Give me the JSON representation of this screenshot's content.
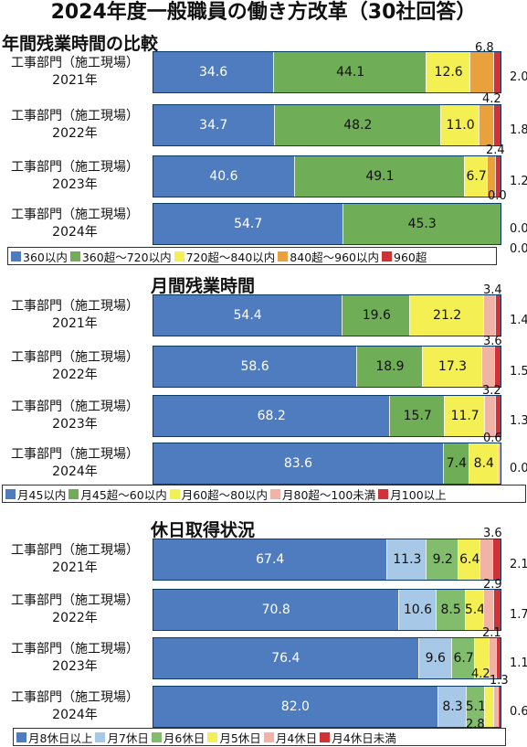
{
  "title": "2024年度一般職員の働き方改革（30社回答）",
  "chart_data": [
    {
      "type": "bar",
      "stacked": true,
      "orientation": "horizontal",
      "title": "年間残業時間の比較",
      "categories": [
        [
          "工事部門（施工現場）",
          "2021年"
        ],
        [
          "工事部門（施工現場）",
          "2022年"
        ],
        [
          "工事部門（施工現場）",
          "2023年"
        ],
        [
          "工事部門（施工現場）",
          "2024年"
        ]
      ],
      "series": [
        {
          "name": "360以内",
          "color": "#4f7cbe",
          "values": [
            34.6,
            34.7,
            40.6,
            54.7
          ]
        },
        {
          "name": "360超～720以内",
          "color": "#6fae56",
          "values": [
            44.1,
            48.2,
            49.1,
            45.3
          ]
        },
        {
          "name": "720超～840以内",
          "color": "#f4ef52",
          "values": [
            12.6,
            11.0,
            6.7,
            0.0
          ]
        },
        {
          "name": "840超～960以内",
          "color": "#e9a23b",
          "values": [
            6.8,
            4.2,
            2.4,
            0.0
          ]
        },
        {
          "name": "960超",
          "color": "#cf3338",
          "values": [
            2.0,
            1.8,
            1.2,
            0.0
          ]
        }
      ],
      "labels": [
        [
          "34.6",
          "44.1",
          "12.6",
          "6.8",
          "2.0"
        ],
        [
          "34.7",
          "48.2",
          "11.0",
          "4.2",
          "1.8"
        ],
        [
          "40.6",
          "49.1",
          "6.7",
          "2.4",
          "1.2"
        ],
        [
          "54.7",
          "45.3",
          "",
          "0.0",
          "0.0"
        ]
      ],
      "extra_labels": [
        "",
        "",
        "",
        "0.0"
      ],
      "xlim": [
        0,
        100
      ]
    },
    {
      "type": "bar",
      "stacked": true,
      "orientation": "horizontal",
      "title": "月間残業時間",
      "categories": [
        [
          "工事部門（施工現場）",
          "2021年"
        ],
        [
          "工事部門（施工現場）",
          "2022年"
        ],
        [
          "工事部門（施工現場）",
          "2023年"
        ],
        [
          "工事部門（施工現場）",
          "2024年"
        ]
      ],
      "series": [
        {
          "name": "月45以内",
          "color": "#4f7cbe",
          "values": [
            54.4,
            58.6,
            68.2,
            83.6
          ]
        },
        {
          "name": "月45超～60以内",
          "color": "#6fae56",
          "values": [
            19.6,
            18.9,
            15.7,
            7.4
          ]
        },
        {
          "name": "月60超～80以内",
          "color": "#f4ef52",
          "values": [
            21.2,
            17.3,
            11.7,
            8.4
          ]
        },
        {
          "name": "月80超～100未満",
          "color": "#f0b3a6",
          "values": [
            3.4,
            3.6,
            3.2,
            0.6
          ]
        },
        {
          "name": "月100以上",
          "color": "#cf3338",
          "values": [
            1.4,
            1.5,
            1.3,
            0.0
          ]
        }
      ],
      "labels": [
        [
          "54.4",
          "19.6",
          "21.2",
          "3.4",
          "1.4"
        ],
        [
          "58.6",
          "18.9",
          "17.3",
          "3.6",
          "1.5"
        ],
        [
          "68.2",
          "15.7",
          "11.7",
          "3.2",
          "1.3"
        ],
        [
          "83.6",
          "7.4",
          "8.4",
          "0.6",
          "0.0"
        ]
      ],
      "xlim": [
        0,
        100
      ]
    },
    {
      "type": "bar",
      "stacked": true,
      "orientation": "horizontal",
      "title": "休日取得状況",
      "categories": [
        [
          "工事部門（施工現場）",
          "2021年"
        ],
        [
          "工事部門（施工現場）",
          "2022年"
        ],
        [
          "工事部門（施工現場）",
          "2023年"
        ],
        [
          "工事部門（施工現場）",
          "2024年"
        ]
      ],
      "series": [
        {
          "name": "月8休日以上",
          "color": "#4f7cbe",
          "values": [
            67.4,
            70.8,
            76.4,
            82.0
          ]
        },
        {
          "name": "月7休日",
          "color": "#a8c8e8",
          "values": [
            11.3,
            10.6,
            9.6,
            8.3
          ]
        },
        {
          "name": "月6休日",
          "color": "#82bd6d",
          "values": [
            9.2,
            8.5,
            6.7,
            5.1
          ]
        },
        {
          "name": "月5休日",
          "color": "#f4ef52",
          "values": [
            6.4,
            5.4,
            4.2,
            2.8
          ]
        },
        {
          "name": "月4休日",
          "color": "#f0b3a6",
          "values": [
            3.6,
            2.9,
            2.1,
            1.3
          ]
        },
        {
          "name": "月4休日未満",
          "color": "#cf3338",
          "values": [
            2.1,
            1.7,
            1.1,
            0.6
          ]
        }
      ],
      "labels": [
        [
          "67.4",
          "11.3",
          "9.2",
          "6.4",
          "3.6",
          "2.1"
        ],
        [
          "70.8",
          "10.6",
          "8.5",
          "5.4",
          "2.9",
          "1.7"
        ],
        [
          "76.4",
          "9.6",
          "6.7",
          "4.2",
          "2.1",
          "1.1"
        ],
        [
          "82.0",
          "8.3",
          "5.1",
          "2.8",
          "1.3",
          "0.6"
        ]
      ],
      "xlim": [
        0,
        100
      ]
    }
  ]
}
